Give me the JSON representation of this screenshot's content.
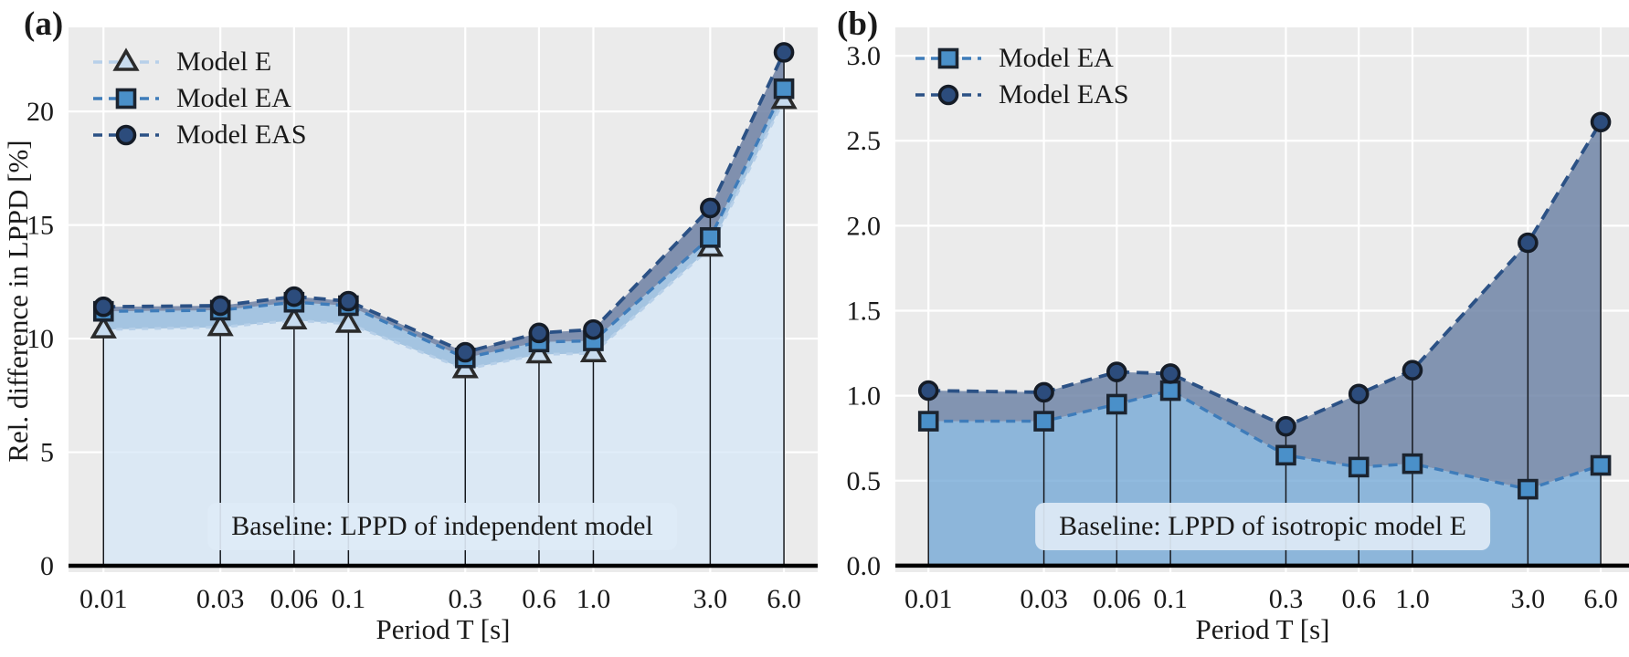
{
  "chart_data": [
    {
      "type": "line",
      "panel_label": "(a)",
      "xlabel": "Period T [s]",
      "ylabel": "Rel. difference in LPPD [%]",
      "annotation": "Baseline: LPPD of independent model",
      "x_scale": "log",
      "grid": true,
      "legend_position": "upper left",
      "x": [
        0.01,
        0.03,
        0.06,
        0.1,
        0.3,
        0.6,
        1.0,
        3.0,
        6.0
      ],
      "xtick_labels": [
        "0.01",
        "0.03",
        "0.06",
        "0.1",
        "0.3",
        "0.6",
        "1.0",
        "3.0",
        "6.0"
      ],
      "xlim": [
        0.0072,
        8.24
      ],
      "ylim": [
        -0.28,
        23.7
      ],
      "yticks": [
        0,
        5,
        10,
        15,
        20
      ],
      "ytick_labels": [
        "0",
        "5",
        "10",
        "15",
        "20"
      ],
      "zero_line": true,
      "colors": {
        "plot_bg": "#ebebeb",
        "gridline": "#ffffff",
        "stem": "#14171c",
        "zero_line": "#000000",
        "text": "#1a1a1a",
        "annotation_bg": "#deeaf6"
      },
      "series": [
        {
          "name": "Model E",
          "marker": "triangle",
          "values": [
            10.4,
            10.5,
            10.8,
            10.65,
            8.65,
            9.3,
            9.35,
            14.0,
            20.5
          ],
          "line_color": "#b7d0e9",
          "dash": "7 7",
          "line_width": 3,
          "marker_fill": "#c8dcef",
          "marker_edge": "#2b2b2b",
          "below_color": "rgba(214,231,247,0.75)"
        },
        {
          "name": "Model EA",
          "marker": "square",
          "values": [
            11.2,
            11.25,
            11.6,
            11.45,
            9.15,
            9.85,
            9.9,
            14.45,
            21.0
          ],
          "line_color": "#3e7cba",
          "dash": "10 7",
          "line_width": 3.4,
          "marker_fill": "#4a90c9",
          "marker_edge": "#1b2430",
          "band_color": "rgba(146,186,222,0.8)"
        },
        {
          "name": "Model EAS",
          "marker": "circle",
          "values": [
            11.4,
            11.45,
            11.85,
            11.65,
            9.4,
            10.25,
            10.4,
            15.75,
            22.6
          ],
          "line_color": "#2b5185",
          "dash": "13 8",
          "line_width": 3.8,
          "marker_fill": "#2c4c7c",
          "marker_edge": "#151c27",
          "band_color": "rgba(109,128,163,0.85)"
        }
      ]
    },
    {
      "type": "line",
      "panel_label": "(b)",
      "xlabel": "Period T [s]",
      "ylabel": "",
      "annotation": "Baseline: LPPD of isotropic model E",
      "x_scale": "log",
      "grid": true,
      "legend_position": "upper left",
      "x": [
        0.01,
        0.03,
        0.06,
        0.1,
        0.3,
        0.6,
        1.0,
        3.0,
        6.0
      ],
      "xtick_labels": [
        "0.01",
        "0.03",
        "0.06",
        "0.1",
        "0.3",
        "0.6",
        "1.0",
        "3.0",
        "6.0"
      ],
      "xlim": [
        0.0073,
        7.85
      ],
      "ylim": [
        -0.038,
        3.167
      ],
      "yticks": [
        0,
        0.5,
        1.0,
        1.5,
        2.0,
        2.5,
        3.0
      ],
      "ytick_labels": [
        "0.0",
        "0.5",
        "1.0",
        "1.5",
        "2.0",
        "2.5",
        "3.0"
      ],
      "zero_line": true,
      "colors": {
        "plot_bg": "#ebebeb",
        "gridline": "#ffffff",
        "stem": "#14171c",
        "zero_line": "#000000",
        "text": "#1a1a1a",
        "annotation_bg": "#deeaf6"
      },
      "series": [
        {
          "name": "Model EA",
          "marker": "square",
          "values": [
            0.85,
            0.85,
            0.95,
            1.03,
            0.65,
            0.58,
            0.6,
            0.45,
            0.59
          ],
          "line_color": "#3e7cba",
          "dash": "10 7",
          "line_width": 3.4,
          "marker_fill": "#4a90c9",
          "marker_edge": "#1b2430",
          "below_color": "rgba(118,169,214,0.8)"
        },
        {
          "name": "Model EAS",
          "marker": "circle",
          "values": [
            1.03,
            1.02,
            1.14,
            1.13,
            0.82,
            1.01,
            1.15,
            1.9,
            2.61
          ],
          "line_color": "#2b5185",
          "dash": "13 8",
          "line_width": 3.8,
          "marker_fill": "#2c4c7c",
          "marker_edge": "#151c27",
          "band_color": "rgba(112,133,167,0.85)"
        }
      ]
    }
  ]
}
